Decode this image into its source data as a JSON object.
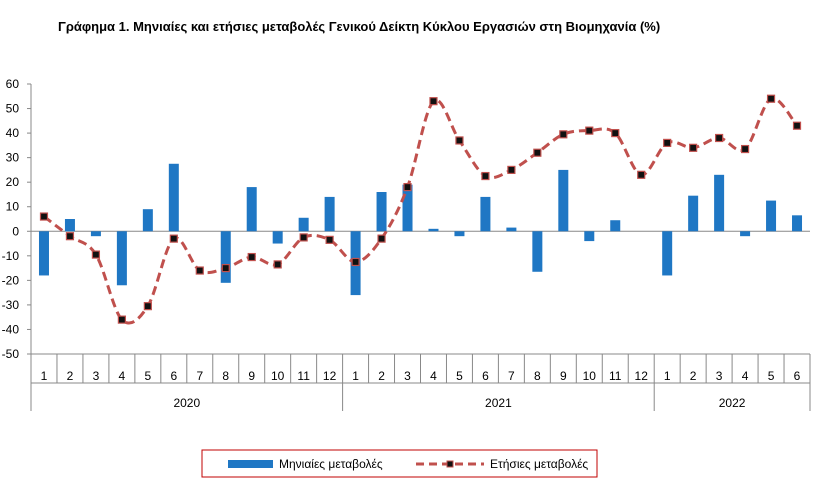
{
  "chart_data": {
    "type": "bar",
    "title": "Γράφημα 1. Μηνιαίες και ετήσιες μεταβολές  Γενικού Δείκτη Κύκλου Εργασιών στη Βιομηχανία (%)",
    "categories": [
      "1",
      "2",
      "3",
      "4",
      "5",
      "6",
      "7",
      "8",
      "9",
      "10",
      "11",
      "12",
      "1",
      "2",
      "3",
      "4",
      "5",
      "6",
      "7",
      "8",
      "9",
      "10",
      "11",
      "12",
      "1",
      "2",
      "3",
      "4",
      "5",
      "6"
    ],
    "years": [
      {
        "label": "2020",
        "count": 12
      },
      {
        "label": "2021",
        "count": 12
      },
      {
        "label": "2022",
        "count": 6
      }
    ],
    "ylim": [
      -50,
      60
    ],
    "yticks": [
      -50,
      -40,
      -30,
      -20,
      -10,
      0,
      10,
      20,
      30,
      40,
      50,
      60
    ],
    "series": [
      {
        "name": "Μηνιαίες μεταβολές",
        "kind": "bar",
        "color": "#1f77c4",
        "values": [
          -18,
          5,
          -2,
          -22,
          9,
          27.5,
          0,
          -21,
          18,
          -5,
          5.5,
          14,
          -26,
          16,
          19,
          1,
          -2,
          14,
          1.5,
          -16.5,
          25,
          -4,
          4.5,
          0,
          -18,
          14.5,
          23,
          -2,
          12.5,
          6.5
        ]
      },
      {
        "name": "Ετήσιες μεταβολές",
        "kind": "line",
        "color": "#c0504d",
        "marker_color": "#111111",
        "values": [
          6,
          -2,
          -9.5,
          -36,
          -30.5,
          -3,
          -16,
          -15,
          -10.5,
          -13.5,
          -2.5,
          -3.5,
          -12.5,
          -3,
          18,
          53,
          37,
          22.5,
          25,
          32,
          39.5,
          41,
          40,
          23,
          36,
          34,
          38,
          33.5,
          54,
          43
        ]
      }
    ],
    "legend_position": "bottom-center",
    "grid": false
  }
}
